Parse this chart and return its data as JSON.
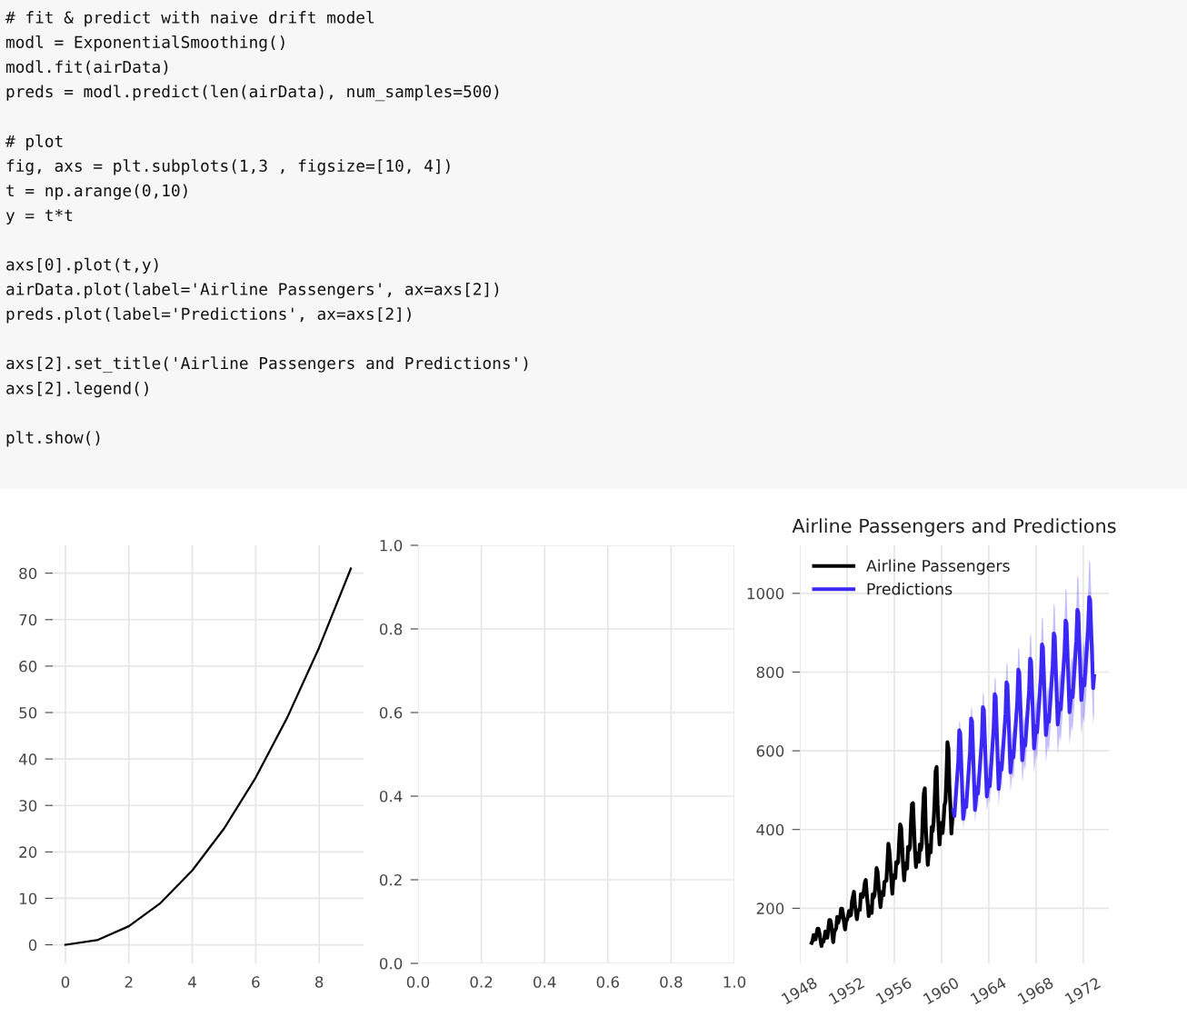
{
  "chart_data": [
    {
      "type": "line",
      "annotations": [
        "# fit & predict with naive drift model\nmodl = ExponentialSmoothing()\nmodl.fit(airData)\npreds = modl.predict(len(airData), num_samples=500)\n\n# plot\nfig, axs = plt.subplots(1,3 , figsize=[10, 4])\nt = np.arange(0,10)\ny = t*t\n\naxs[0].plot(t,y)\nairData.plot(label='Airline Passengers', ax=axs[2])\npreds.plot(label='Predictions', ax=axs[2])\n\naxs[2].set_title('Airline Passengers and Predictions')\naxs[2].legend()\n\nplt.show()"
      ],
      "x": [
        0,
        1,
        2,
        3,
        4,
        5,
        6,
        7,
        8,
        9
      ],
      "series": [
        {
          "color": "#000000",
          "values": [
            0,
            1,
            4,
            9,
            16,
            25,
            36,
            49,
            64,
            81
          ]
        }
      ],
      "xlim": [
        -0.4,
        9.4
      ],
      "ylim": [
        -4,
        86
      ],
      "xticks": [
        0,
        2,
        4,
        6,
        8
      ],
      "yticks": [
        0,
        10,
        20,
        30,
        40,
        50,
        60,
        70,
        80
      ],
      "grid": true
    },
    {
      "type": "line",
      "xlim": [
        0,
        1
      ],
      "ylim": [
        0,
        1
      ],
      "xticks": [
        {
          "value": 0,
          "label": "0.0"
        },
        {
          "value": 0.2,
          "label": "0.2"
        },
        {
          "value": 0.4,
          "label": "0.4"
        },
        {
          "value": 0.6,
          "label": "0.6"
        },
        {
          "value": 0.8,
          "label": "0.8"
        },
        {
          "value": 1,
          "label": "1.0"
        }
      ],
      "yticks": [
        {
          "value": 0,
          "label": "0.0"
        },
        {
          "value": 0.2,
          "label": "0.2"
        },
        {
          "value": 0.4,
          "label": "0.4"
        },
        {
          "value": 0.6,
          "label": "0.6"
        },
        {
          "value": 0.8,
          "label": "0.8"
        },
        {
          "value": 1,
          "label": "1.0"
        }
      ],
      "grid": true
    },
    {
      "type": "line",
      "title": "Airline Passengers and Predictions",
      "legend": "top left",
      "grid": true,
      "xlim": [
        "1948-01",
        "1974-03"
      ],
      "ylim": [
        60,
        1122
      ],
      "xticks": [
        "1948",
        "1952",
        "1956",
        "1960",
        "1964",
        "1968",
        "1972"
      ],
      "yticks": [
        200,
        400,
        600,
        800,
        1000
      ],
      "series": [
        {
          "name": "Airline Passengers",
          "color": "#000000",
          "x": [
            "1949-01",
            "1949-02",
            "1949-03",
            "1949-04",
            "1949-05",
            "1949-06",
            "1949-07",
            "1949-08",
            "1949-09",
            "1949-10",
            "1949-11",
            "1949-12",
            "1950-01",
            "1950-02",
            "1950-03",
            "1950-04",
            "1950-05",
            "1950-06",
            "1950-07",
            "1950-08",
            "1950-09",
            "1950-10",
            "1950-11",
            "1950-12",
            "1951-01",
            "1951-02",
            "1951-03",
            "1951-04",
            "1951-05",
            "1951-06",
            "1951-07",
            "1951-08",
            "1951-09",
            "1951-10",
            "1951-11",
            "1951-12",
            "1952-01",
            "1952-02",
            "1952-03",
            "1952-04",
            "1952-05",
            "1952-06",
            "1952-07",
            "1952-08",
            "1952-09",
            "1952-10",
            "1952-11",
            "1952-12",
            "1953-01",
            "1953-02",
            "1953-03",
            "1953-04",
            "1953-05",
            "1953-06",
            "1953-07",
            "1953-08",
            "1953-09",
            "1953-10",
            "1953-11",
            "1953-12",
            "1954-01",
            "1954-02",
            "1954-03",
            "1954-04",
            "1954-05",
            "1954-06",
            "1954-07",
            "1954-08",
            "1954-09",
            "1954-10",
            "1954-11",
            "1954-12",
            "1955-01",
            "1955-02",
            "1955-03",
            "1955-04",
            "1955-05",
            "1955-06",
            "1955-07",
            "1955-08",
            "1955-09",
            "1955-10",
            "1955-11",
            "1955-12",
            "1956-01",
            "1956-02",
            "1956-03",
            "1956-04",
            "1956-05",
            "1956-06",
            "1956-07",
            "1956-08",
            "1956-09",
            "1956-10",
            "1956-11",
            "1956-12",
            "1957-01",
            "1957-02",
            "1957-03",
            "1957-04",
            "1957-05",
            "1957-06",
            "1957-07",
            "1957-08",
            "1957-09",
            "1957-10",
            "1957-11",
            "1957-12",
            "1958-01",
            "1958-02",
            "1958-03",
            "1958-04",
            "1958-05",
            "1958-06",
            "1958-07",
            "1958-08",
            "1958-09",
            "1958-10",
            "1958-11",
            "1958-12",
            "1959-01",
            "1959-02",
            "1959-03",
            "1959-04",
            "1959-05",
            "1959-06",
            "1959-07",
            "1959-08",
            "1959-09",
            "1959-10",
            "1959-11",
            "1959-12",
            "1960-01",
            "1960-02",
            "1960-03",
            "1960-04",
            "1960-05",
            "1960-06",
            "1960-07",
            "1960-08",
            "1960-09",
            "1960-10",
            "1960-11",
            "1960-12"
          ],
          "values": [
            112,
            118,
            132,
            129,
            121,
            135,
            148,
            148,
            136,
            119,
            104,
            118,
            115,
            126,
            141,
            135,
            125,
            149,
            170,
            170,
            158,
            133,
            114,
            140,
            145,
            150,
            178,
            163,
            172,
            178,
            199,
            199,
            184,
            162,
            146,
            166,
            171,
            180,
            193,
            181,
            183,
            218,
            230,
            242,
            209,
            191,
            172,
            194,
            196,
            196,
            236,
            235,
            229,
            243,
            264,
            272,
            237,
            211,
            180,
            201,
            204,
            188,
            235,
            227,
            234,
            264,
            302,
            293,
            259,
            229,
            203,
            229,
            242,
            233,
            267,
            269,
            270,
            315,
            364,
            347,
            312,
            274,
            237,
            278,
            284,
            277,
            317,
            313,
            318,
            374,
            413,
            405,
            355,
            306,
            271,
            306,
            315,
            301,
            356,
            348,
            355,
            422,
            465,
            467,
            404,
            347,
            305,
            336,
            340,
            318,
            362,
            348,
            363,
            435,
            491,
            505,
            404,
            359,
            310,
            337,
            360,
            342,
            406,
            396,
            420,
            472,
            548,
            559,
            463,
            407,
            362,
            405,
            417,
            391,
            419,
            461,
            472,
            535,
            622,
            606,
            508,
            461,
            390,
            432
          ]
        },
        {
          "name": "Predictions",
          "color": "#3b28f5",
          "x": [
            "1961-01",
            "1961-02",
            "1961-06",
            "1961-07",
            "1961-08",
            "1961-11",
            "1962-01",
            "1962-02",
            "1962-06",
            "1962-07",
            "1962-08",
            "1962-11",
            "1963-01",
            "1963-02",
            "1963-06",
            "1963-07",
            "1963-08",
            "1963-11",
            "1964-01",
            "1964-02",
            "1964-06",
            "1964-07",
            "1964-08",
            "1964-11",
            "1965-01",
            "1965-02",
            "1965-06",
            "1965-07",
            "1965-08",
            "1965-11",
            "1966-01",
            "1966-02",
            "1966-06",
            "1966-07",
            "1966-08",
            "1966-11",
            "1967-01",
            "1967-02",
            "1967-06",
            "1967-07",
            "1967-08",
            "1967-11",
            "1968-01",
            "1968-02",
            "1968-06",
            "1968-07",
            "1968-08",
            "1968-11",
            "1969-01",
            "1969-02",
            "1969-06",
            "1969-07",
            "1969-08",
            "1969-11",
            "1970-01",
            "1970-02",
            "1970-06",
            "1970-07",
            "1970-08",
            "1970-11",
            "1971-01",
            "1971-02",
            "1971-06",
            "1971-07",
            "1971-08",
            "1971-11",
            "1972-01",
            "1972-02",
            "1972-06",
            "1972-07",
            "1972-08",
            "1972-11",
            "1972-12"
          ],
          "values": [
            450,
            434,
            573,
            652,
            645,
            427,
            473,
            457,
            601,
            682,
            675,
            450,
            507,
            491,
            632,
            711,
            704,
            484,
            527,
            510,
            660,
            744,
            737,
            503,
            568,
            552,
            694,
            774,
            767,
            545,
            599,
            583,
            726,
            806,
            799,
            576,
            629,
            613,
            754,
            834,
            827,
            606,
            663,
            647,
            790,
            870,
            863,
            640,
            690,
            674,
            817,
            898,
            891,
            667,
            721,
            705,
            849,
            931,
            924,
            698,
            752,
            736,
            878,
            958,
            951,
            729,
            782,
            766,
            909,
            990,
            983,
            759,
            790
          ],
          "lower": [
            425,
            409,
            548,
            627,
            620,
            402,
            442,
            426,
            570,
            651,
            644,
            419,
            469,
            453,
            594,
            673,
            666,
            446,
            483,
            466,
            616,
            700,
            693,
            459,
            518,
            502,
            644,
            724,
            717,
            495,
            542,
            526,
            669,
            749,
            742,
            519,
            566,
            550,
            691,
            771,
            764,
            543,
            593,
            577,
            720,
            800,
            793,
            570,
            614,
            598,
            741,
            822,
            815,
            591,
            639,
            623,
            767,
            849,
            842,
            616,
            664,
            648,
            790,
            870,
            863,
            641,
            687,
            671,
            814,
            895,
            888,
            664,
            695
          ],
          "upper": [
            475,
            459,
            598,
            677,
            670,
            452,
            504,
            488,
            632,
            713,
            706,
            481,
            545,
            529,
            670,
            749,
            742,
            522,
            571,
            554,
            704,
            788,
            781,
            547,
            618,
            602,
            744,
            824,
            817,
            595,
            656,
            640,
            783,
            863,
            856,
            633,
            692,
            676,
            817,
            897,
            890,
            669,
            733,
            717,
            860,
            940,
            933,
            710,
            766,
            750,
            893,
            974,
            967,
            743,
            803,
            787,
            931,
            1013,
            1006,
            780,
            840,
            824,
            966,
            1046,
            1039,
            817,
            877,
            861,
            1004,
            1085,
            1078,
            854,
            885
          ]
        }
      ]
    }
  ]
}
